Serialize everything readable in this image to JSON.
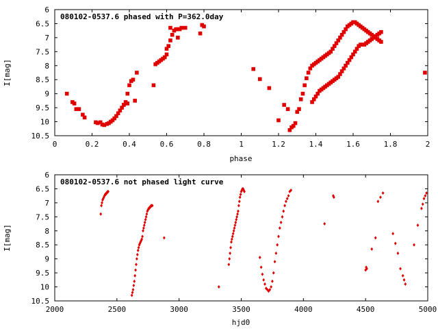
{
  "chart_data": [
    {
      "type": "scatter",
      "title": "080102-0537.6 phased with P=362.0day",
      "xlabel": "phase",
      "ylabel": "I[mag]",
      "xlim": [
        0,
        2
      ],
      "ylim": [
        10.5,
        6
      ],
      "y_inverted": true,
      "xticks": [
        0,
        0.2,
        0.4,
        0.6,
        0.8,
        1,
        1.2,
        1.4,
        1.6,
        1.8,
        2
      ],
      "xtick_labels": [
        "0",
        "0.2",
        "0.4",
        "0.6",
        "0.8",
        "1",
        "1.2",
        "1.4",
        "1.6",
        "1.8",
        "2"
      ],
      "yticks": [
        6,
        6.5,
        7,
        7.5,
        8,
        8.5,
        9,
        9.5,
        10,
        10.5
      ],
      "ytick_labels": [
        "6",
        "6.5",
        "7",
        "7.5",
        "8",
        "8.5",
        "9",
        "9.5",
        "10",
        "10.5"
      ],
      "grid": false,
      "marker_color": "#e00000",
      "x": [
        0.065,
        0.095,
        0.105,
        0.115,
        0.13,
        0.15,
        0.16,
        0.22,
        0.23,
        0.245,
        0.255,
        0.265,
        0.28,
        0.29,
        0.3,
        0.31,
        0.32,
        0.33,
        0.34,
        0.35,
        0.36,
        0.37,
        0.38,
        0.39,
        0.4,
        0.41,
        0.42,
        0.44,
        0.37,
        0.39,
        0.43,
        0.53,
        0.54,
        0.55,
        0.56,
        0.57,
        0.58,
        0.59,
        0.6,
        0.61,
        0.62,
        0.63,
        0.64,
        0.65,
        0.66,
        0.67,
        0.68,
        0.7,
        0.62,
        0.78,
        0.79,
        0.8,
        0.6,
        0.66,
        1.065,
        1.1,
        1.15,
        1.2,
        1.23,
        1.25,
        1.26,
        1.27,
        1.28,
        1.29,
        1.3,
        1.31,
        1.32,
        1.33,
        1.34,
        1.35,
        1.36,
        1.37,
        1.38,
        1.39,
        1.4,
        1.41,
        1.42,
        1.43,
        1.44,
        1.45,
        1.46,
        1.47,
        1.48,
        1.49,
        1.5,
        1.51,
        1.52,
        1.53,
        1.54,
        1.55,
        1.56,
        1.57,
        1.58,
        1.59,
        1.6,
        1.61,
        1.62,
        1.63,
        1.64,
        1.65,
        1.66,
        1.67,
        1.68,
        1.69,
        1.7,
        1.71,
        1.72,
        1.73,
        1.74,
        1.75,
        1.38,
        1.39,
        1.4,
        1.41,
        1.42,
        1.43,
        1.44,
        1.45,
        1.46,
        1.47,
        1.48,
        1.49,
        1.5,
        1.51,
        1.52,
        1.53,
        1.54,
        1.55,
        1.56,
        1.57,
        1.58,
        1.59,
        1.6,
        1.61,
        1.62,
        1.63,
        1.64,
        1.65,
        1.66,
        1.67,
        1.68,
        1.69,
        1.7,
        1.71,
        1.72,
        1.73,
        1.74,
        1.75,
        1.985
      ],
      "y": [
        9.0,
        9.3,
        9.35,
        9.55,
        9.55,
        9.75,
        9.85,
        10.02,
        10.05,
        10.02,
        10.1,
        10.12,
        10.08,
        10.05,
        10.0,
        9.95,
        9.88,
        9.8,
        9.7,
        9.6,
        9.5,
        9.4,
        9.3,
        9.0,
        8.7,
        8.55,
        8.5,
        8.25,
        9.4,
        9.35,
        9.25,
        8.7,
        7.95,
        7.9,
        7.85,
        7.8,
        7.75,
        7.7,
        7.6,
        7.3,
        7.1,
        6.9,
        6.75,
        6.7,
        6.7,
        6.7,
        6.65,
        6.65,
        6.65,
        6.85,
        6.55,
        6.6,
        7.4,
        7.0,
        8.12,
        8.48,
        8.8,
        9.95,
        9.4,
        9.55,
        10.3,
        10.2,
        10.15,
        10.05,
        9.65,
        9.55,
        9.2,
        9.0,
        8.7,
        8.45,
        8.25,
        8.1,
        8.0,
        7.95,
        7.9,
        7.85,
        7.8,
        7.75,
        7.7,
        7.65,
        7.6,
        7.55,
        7.5,
        7.4,
        7.3,
        7.2,
        7.1,
        7.0,
        6.9,
        6.8,
        6.7,
        6.6,
        6.55,
        6.5,
        6.45,
        6.45,
        6.5,
        6.55,
        6.6,
        6.65,
        6.7,
        6.75,
        6.8,
        6.85,
        6.9,
        6.95,
        7.0,
        7.05,
        7.1,
        7.15,
        9.3,
        9.2,
        9.1,
        9.0,
        8.9,
        8.85,
        8.8,
        8.75,
        8.7,
        8.65,
        8.6,
        8.55,
        8.5,
        8.45,
        8.4,
        8.3,
        8.2,
        8.1,
        8.0,
        7.9,
        7.8,
        7.7,
        7.6,
        7.5,
        7.4,
        7.3,
        7.25,
        7.25,
        7.25,
        7.2,
        7.15,
        7.1,
        7.05,
        7.0,
        6.95,
        6.9,
        6.85,
        6.8,
        8.25
      ]
    },
    {
      "type": "scatter",
      "title": "080102-0537.6 not phased light curve",
      "xlabel": "hjd0",
      "ylabel": "I[mag]",
      "xlim": [
        2000,
        5000
      ],
      "ylim": [
        10.5,
        6
      ],
      "y_inverted": true,
      "xticks": [
        2000,
        2500,
        3000,
        3500,
        4000,
        4500,
        5000
      ],
      "xtick_labels": [
        "2000",
        "2500",
        "3000",
        "3500",
        "4000",
        "4500",
        "5000"
      ],
      "yticks": [
        6,
        6.5,
        7,
        7.5,
        8,
        8.5,
        9,
        9.5,
        10,
        10.5
      ],
      "ytick_labels": [
        "6",
        "6.5",
        "7",
        "7.5",
        "8",
        "8.5",
        "9",
        "9.5",
        "10",
        "10.5"
      ],
      "grid": false,
      "marker_color": "#e00000",
      "x": [
        2370,
        2375,
        2380,
        2385,
        2390,
        2395,
        2400,
        2405,
        2410,
        2415,
        2420,
        2425,
        2430,
        2620,
        2625,
        2630,
        2635,
        2640,
        2645,
        2650,
        2655,
        2660,
        2665,
        2670,
        2675,
        2680,
        2685,
        2690,
        2695,
        2700,
        2705,
        2710,
        2715,
        2720,
        2725,
        2730,
        2735,
        2740,
        2745,
        2750,
        2755,
        2760,
        2765,
        2770,
        2775,
        2780,
        2785,
        2880,
        3320,
        3400,
        3405,
        3410,
        3415,
        3420,
        3425,
        3430,
        3435,
        3440,
        3445,
        3450,
        3455,
        3460,
        3465,
        3470,
        3475,
        3480,
        3485,
        3490,
        3495,
        3500,
        3505,
        3510,
        3515,
        3520,
        3525,
        3650,
        3660,
        3670,
        3680,
        3690,
        3700,
        3710,
        3720,
        3730,
        3740,
        3750,
        3760,
        3770,
        3780,
        3790,
        3800,
        3810,
        3820,
        3830,
        3840,
        3850,
        3860,
        3870,
        3880,
        3890,
        3900,
        4170,
        4240,
        4245,
        4500,
        4505,
        4510,
        4550,
        4580,
        4600,
        4620,
        4640,
        4720,
        4740,
        4760,
        4780,
        4800,
        4810,
        4820,
        4890,
        4920,
        4950,
        4960,
        4970,
        4980,
        4990
      ],
      "y": [
        7.4,
        7.1,
        7.0,
        6.9,
        6.85,
        6.8,
        6.75,
        6.7,
        6.7,
        6.65,
        6.65,
        6.6,
        6.6,
        10.3,
        10.2,
        10.1,
        9.95,
        9.8,
        9.6,
        9.4,
        9.2,
        9.0,
        8.85,
        8.7,
        8.6,
        8.5,
        8.45,
        8.4,
        8.35,
        8.3,
        8.2,
        8.0,
        7.9,
        7.8,
        7.7,
        7.6,
        7.5,
        7.4,
        7.3,
        7.25,
        7.2,
        7.2,
        7.15,
        7.15,
        7.1,
        7.1,
        7.1,
        8.25,
        10.0,
        9.2,
        9.0,
        8.8,
        8.6,
        8.4,
        8.3,
        8.2,
        8.1,
        8.0,
        7.9,
        7.8,
        7.7,
        7.6,
        7.5,
        7.4,
        7.3,
        7.1,
        6.95,
        6.8,
        6.7,
        6.6,
        6.55,
        6.5,
        6.5,
        6.55,
        6.6,
        8.95,
        9.3,
        9.55,
        9.75,
        9.9,
        10.05,
        10.1,
        10.15,
        10.1,
        10.0,
        9.8,
        9.5,
        9.1,
        8.8,
        8.5,
        8.2,
        7.9,
        7.7,
        7.5,
        7.3,
        7.1,
        6.95,
        6.85,
        6.75,
        6.6,
        6.55,
        7.75,
        6.75,
        6.8,
        9.4,
        9.3,
        9.35,
        8.65,
        8.25,
        6.95,
        6.8,
        6.65,
        8.1,
        8.45,
        8.8,
        9.35,
        9.6,
        9.75,
        9.9,
        8.5,
        7.8,
        7.2,
        7.05,
        6.85,
        6.75,
        6.65
      ]
    }
  ]
}
